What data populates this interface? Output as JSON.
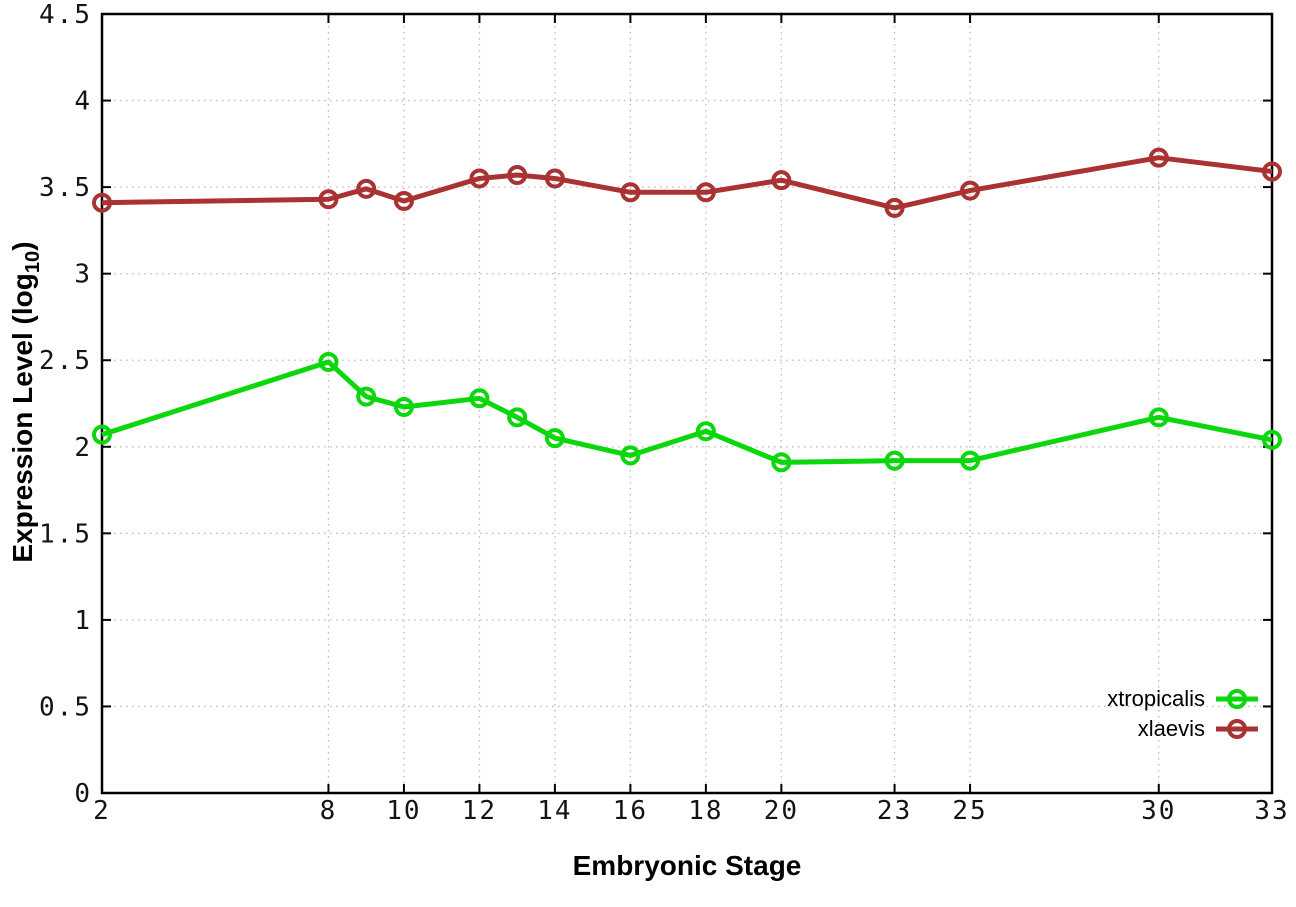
{
  "chart_data": {
    "type": "line",
    "title": "",
    "xlabel": "Embryonic Stage",
    "ylabel": "Expression Level (log10)",
    "ylabel_main": "Expression Level (log",
    "ylabel_sub": "10",
    "ylabel_end": ")",
    "xlim": [
      2,
      33
    ],
    "ylim": [
      0,
      4.5
    ],
    "x_ticks": [
      2,
      8,
      10,
      12,
      14,
      16,
      18,
      20,
      23,
      25,
      30,
      33
    ],
    "y_ticks": [
      0,
      0.5,
      1,
      1.5,
      2,
      2.5,
      3,
      3.5,
      4,
      4.5
    ],
    "y_tick_labels": [
      "0",
      "0.5",
      "1",
      "1.5",
      "2",
      "2.5",
      "3",
      "3.5",
      "4",
      "4.5"
    ],
    "grid": true,
    "legend_position": "bottom-right",
    "marker": "open-circle",
    "x": [
      2,
      8,
      9,
      10,
      12,
      13,
      14,
      16,
      18,
      20,
      23,
      25,
      30,
      33
    ],
    "series": [
      {
        "name": "xtropicalis",
        "color": "#0cd60c",
        "values": [
          2.07,
          2.49,
          2.29,
          2.23,
          2.28,
          2.17,
          2.05,
          1.95,
          2.09,
          1.91,
          1.92,
          1.92,
          2.17,
          2.04
        ]
      },
      {
        "name": "xlaevis",
        "color": "#a93232",
        "values": [
          3.41,
          3.43,
          3.49,
          3.42,
          3.55,
          3.57,
          3.55,
          3.47,
          3.47,
          3.54,
          3.38,
          3.48,
          3.67,
          3.59
        ]
      }
    ]
  },
  "colors": {
    "background": "#ffffff",
    "axis": "#000000",
    "grid": "#bdbdbd",
    "text": "#000000"
  }
}
